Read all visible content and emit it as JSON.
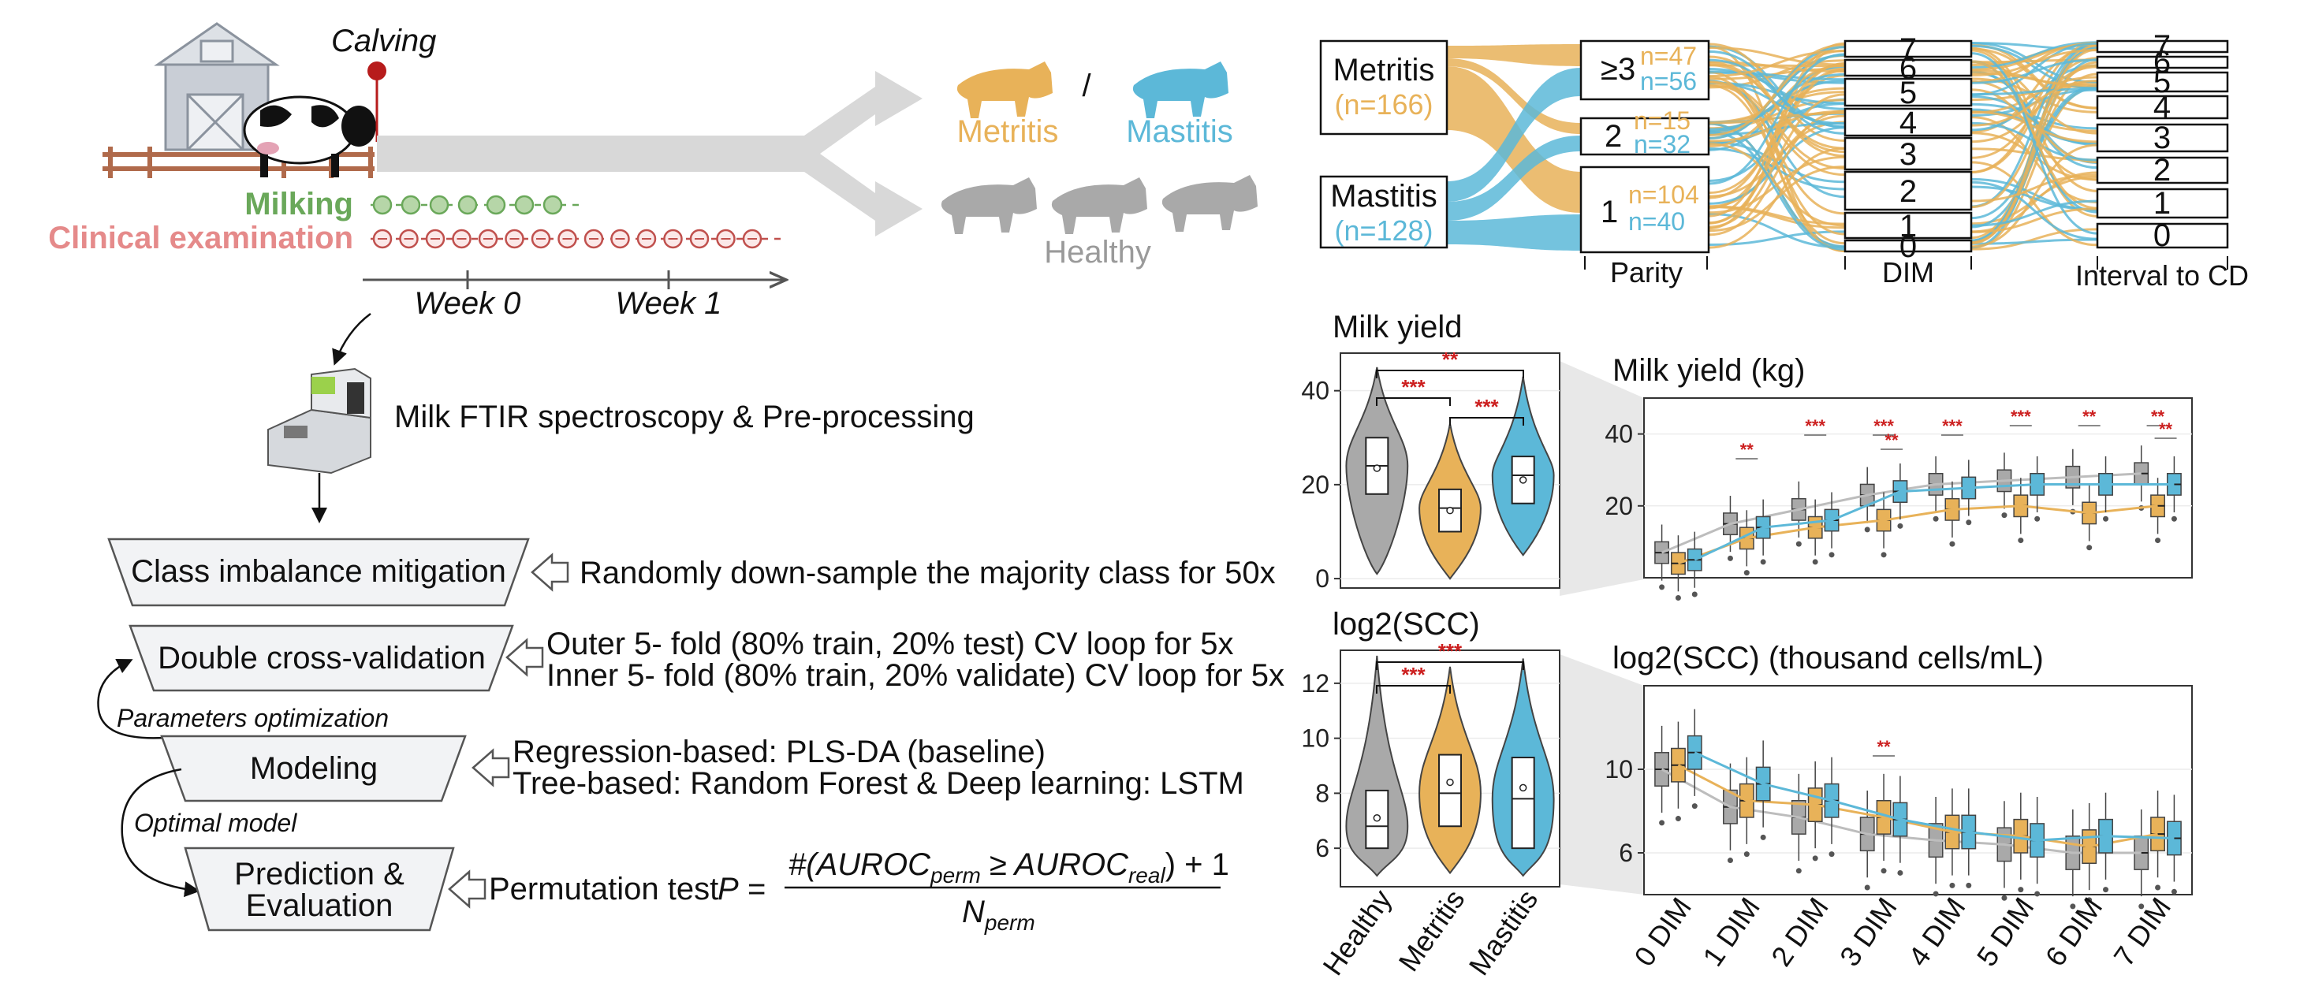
{
  "timeline": {
    "calving_label": "Calving",
    "milking_label": "Milking",
    "clinical_label": "Clinical examination",
    "week0_label": "Week 0",
    "week1_label": "Week 1"
  },
  "outcomes": {
    "metritis": "Metritis",
    "mastitis": "Mastitis",
    "separator": "/",
    "healthy": "Healthy"
  },
  "workflow": {
    "ftir_label": "Milk FTIR spectroscopy & Pre-processing",
    "steps": [
      {
        "label": "Class imbalance mitigation",
        "desc": [
          "Randomly down-sample the majority class for 50x"
        ]
      },
      {
        "label": "Double cross-validation",
        "desc": [
          "Outer 5- fold (80% train, 20% test) CV loop for 5x",
          "Inner 5- fold (80% train, 20% validate) CV loop for 5x"
        ]
      },
      {
        "label": "Modeling",
        "desc": [
          "Regression-based: PLS-DA (baseline)",
          "Tree-based: Random Forest  & Deep learning: LSTM"
        ]
      },
      {
        "label_lines": [
          "Prediction &",
          "Evaluation"
        ],
        "desc": [
          "Permutation test"
        ]
      }
    ],
    "loop_params_label": "Parameters optimization",
    "loop_model_label": "Optimal model",
    "formula": {
      "P": "P",
      "eq": "=",
      "numerator": "#(AUROC",
      "num_sub1": "perm",
      "num_geq": " ≥ AUROC",
      "num_sub2": "real",
      "num_tail": ") + 1",
      "denominator": "N",
      "den_sub": "perm"
    }
  },
  "sankey": {
    "left": [
      {
        "name": "Metritis",
        "count": "(n=166)"
      },
      {
        "name": "Mastitis",
        "count": "(n=128)"
      }
    ],
    "parity": [
      {
        "level": "≥3",
        "metritis_n": "n=47",
        "mastitis_n": "n=56"
      },
      {
        "level": "2",
        "metritis_n": "n=15",
        "mastitis_n": "n=32"
      },
      {
        "level": "1",
        "metritis_n": "n=104",
        "mastitis_n": "n=40"
      }
    ],
    "dim_levels": [
      "7",
      "6",
      "5",
      "4",
      "3",
      "2",
      "1",
      "0"
    ],
    "cd_levels": [
      "7",
      "6",
      "5",
      "4",
      "3",
      "2",
      "1",
      "0"
    ],
    "axis_labels": [
      "Parity",
      "DIM",
      "Interval to CD"
    ]
  },
  "violin_panels": [
    {
      "title": "Milk yield",
      "yticks": [
        "40",
        "20",
        "0"
      ]
    },
    {
      "title": "log2(SCC)",
      "yticks": [
        "12",
        "10",
        "8",
        "6"
      ]
    }
  ],
  "violin_groups": [
    "Healthy",
    "Metritis",
    "Mastitis"
  ],
  "box_panels": [
    {
      "title": "Milk yield (kg)",
      "yticks": [
        "40",
        "20"
      ]
    },
    {
      "title": "log2(SCC) (thousand cells/mL)",
      "yticks": [
        "10",
        "6"
      ]
    }
  ],
  "box_x_labels": [
    "0 DIM",
    "1 DIM",
    "2 DIM",
    "3 DIM",
    "4 DIM",
    "5 DIM",
    "6 DIM",
    "7 DIM"
  ],
  "sig_labels": {
    "two": "**",
    "three": "***"
  },
  "colors": {
    "healthy": "#a9a9a9",
    "metritis": "#e8b259",
    "mastitis": "#5cb8d8",
    "milking": "#6aa85a",
    "clinical": "#e58a8a",
    "significance": "#cc1f1f",
    "step_box_fill": "#f2f3f5"
  },
  "chart_data": [
    {
      "type": "violin",
      "title": "Milk yield",
      "categories": [
        "Healthy",
        "Metritis",
        "Mastitis"
      ],
      "ylim": [
        -2,
        48
      ],
      "series": [
        {
          "name": "Healthy",
          "median": 24,
          "q1": 18,
          "q3": 30,
          "mean": 23.5,
          "min": 1,
          "max": 45
        },
        {
          "name": "Metritis",
          "median": 15,
          "q1": 10,
          "q3": 19,
          "mean": 14.5,
          "min": 0,
          "max": 33
        },
        {
          "name": "Mastitis",
          "median": 22,
          "q1": 16,
          "q3": 26,
          "mean": 21,
          "min": 5,
          "max": 43
        }
      ]
    },
    {
      "type": "violin",
      "title": "log2(SCC)",
      "categories": [
        "Healthy",
        "Metritis",
        "Mastitis"
      ],
      "ylim": [
        4.6,
        13.2
      ],
      "series": [
        {
          "name": "Healthy",
          "median": 6.8,
          "q1": 6.0,
          "q3": 8.1,
          "mean": 7.1,
          "min": 5.0,
          "max": 13.0
        },
        {
          "name": "Metritis",
          "median": 8.0,
          "q1": 6.8,
          "q3": 9.4,
          "mean": 8.4,
          "min": 5.1,
          "max": 12.6
        },
        {
          "name": "Mastitis",
          "median": 7.8,
          "q1": 6.0,
          "q3": 9.3,
          "mean": 8.2,
          "min": 5.0,
          "max": 12.9
        }
      ]
    },
    {
      "type": "box",
      "title": "Milk yield (kg)",
      "categories": [
        "0 DIM",
        "1 DIM",
        "2 DIM",
        "3 DIM",
        "4 DIM",
        "5 DIM",
        "6 DIM",
        "7 DIM"
      ],
      "ylim": [
        0,
        50
      ],
      "series": [
        {
          "name": "Healthy",
          "medians": [
            7,
            15,
            19,
            23,
            26,
            27,
            28,
            29
          ]
        },
        {
          "name": "Metritis",
          "medians": [
            4,
            11,
            14,
            16,
            19,
            20,
            18,
            20
          ]
        },
        {
          "name": "Mastitis",
          "medians": [
            5,
            14,
            16,
            24,
            25,
            26,
            26,
            26
          ]
        }
      ]
    },
    {
      "type": "box",
      "title": "log2(SCC) (thousand cells/mL)",
      "categories": [
        "0 DIM",
        "1 DIM",
        "2 DIM",
        "3 DIM",
        "4 DIM",
        "5 DIM",
        "6 DIM",
        "7 DIM"
      ],
      "ylim": [
        4,
        14
      ],
      "series": [
        {
          "name": "Healthy",
          "medians": [
            10,
            8.2,
            7.7,
            6.9,
            6.6,
            6.4,
            6.0,
            6.0
          ]
        },
        {
          "name": "Metritis",
          "medians": [
            10.2,
            8.5,
            8.3,
            7.7,
            7.0,
            6.8,
            6.3,
            6.9
          ]
        },
        {
          "name": "Mastitis",
          "medians": [
            10.8,
            9.3,
            8.5,
            7.6,
            7.0,
            6.6,
            6.8,
            6.7
          ]
        }
      ]
    }
  ]
}
